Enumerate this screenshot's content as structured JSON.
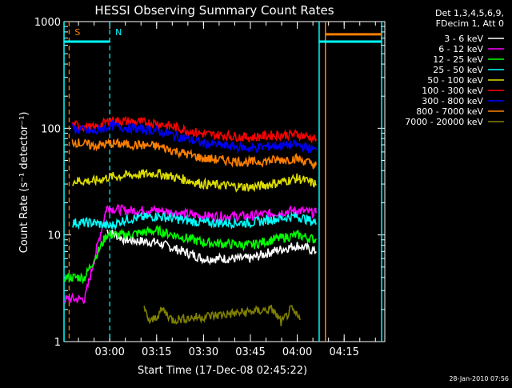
{
  "chart_data": {
    "type": "line",
    "title": "HESSI Observing Summary Count Rates",
    "xlabel": "Start Time (17-Dec-08 02:45:22)",
    "ylabel": "Count Rate (s⁻¹ detector⁻¹)",
    "y_scale": "log",
    "ylim": [
      1,
      1000
    ],
    "xlim": [
      "02:45:22",
      "04:28"
    ],
    "x_ticks": [
      "03:00",
      "03:15",
      "03:30",
      "03:45",
      "04:00",
      "04:15"
    ],
    "y_ticks": [
      "1",
      "10",
      "100",
      "1000"
    ],
    "grid": false,
    "legend_header": [
      "Det 1,3,4,5,6,9,",
      "FDecim 1, Att 0"
    ],
    "legend_position": "top-right",
    "series": [
      {
        "name": "3 - 6 keV",
        "color": "#ffffff",
        "x": [
          "02:59",
          "03:05",
          "03:15",
          "03:30",
          "03:45",
          "03:52",
          "04:00",
          "04:06"
        ],
        "values": [
          11,
          9,
          8.5,
          6,
          6,
          7,
          8,
          7
        ]
      },
      {
        "name": "6 - 12 keV",
        "color": "#ff00ff",
        "x": [
          "02:45:30",
          "02:52",
          "02:59",
          "03:05",
          "03:15",
          "03:30",
          "03:45",
          "03:52",
          "04:00",
          "04:06"
        ],
        "values": [
          2.5,
          2.5,
          18,
          17,
          17,
          15,
          15,
          16,
          17,
          16
        ]
      },
      {
        "name": "12 - 25 keV",
        "color": "#00ff00",
        "x": [
          "02:45:30",
          "02:52",
          "02:59",
          "03:05",
          "03:15",
          "03:30",
          "03:45",
          "03:52",
          "04:00",
          "04:06"
        ],
        "values": [
          4,
          4,
          10,
          10,
          11,
          8.5,
          8,
          9,
          10,
          9
        ]
      },
      {
        "name": "25 - 50 keV",
        "color": "#00ffff",
        "x": [
          "02:48",
          "02:55",
          "03:00",
          "03:05",
          "03:15",
          "03:30",
          "03:45",
          "03:52",
          "04:00",
          "04:06"
        ],
        "values": [
          13,
          13,
          12,
          14,
          15,
          13,
          13,
          14,
          15,
          13
        ]
      },
      {
        "name": "50 - 100 keV",
        "color": "#dddd00",
        "x": [
          "02:48",
          "02:55",
          "03:00",
          "03:15",
          "03:30",
          "03:45",
          "03:52",
          "04:00",
          "04:06"
        ],
        "values": [
          32,
          32,
          35,
          38,
          30,
          28,
          30,
          34,
          30
        ]
      },
      {
        "name": "100 - 300 keV",
        "color": "#ff0000",
        "x": [
          "02:48",
          "02:55",
          "03:00",
          "03:15",
          "03:30",
          "03:45",
          "03:52",
          "04:00",
          "04:06"
        ],
        "values": [
          108,
          100,
          118,
          112,
          88,
          82,
          86,
          88,
          80
        ]
      },
      {
        "name": "300 - 800 keV",
        "color": "#0000ff",
        "x": [
          "02:48",
          "02:55",
          "03:00",
          "03:15",
          "03:30",
          "03:45",
          "03:52",
          "04:00",
          "04:06"
        ],
        "values": [
          100,
          92,
          105,
          95,
          72,
          65,
          68,
          70,
          62
        ]
      },
      {
        "name": "800 - 7000 keV",
        "color": "#ff8000",
        "x": [
          "02:48",
          "02:55",
          "03:00",
          "03:15",
          "03:30",
          "03:45",
          "03:52",
          "04:00",
          "04:06"
        ],
        "values": [
          75,
          68,
          72,
          68,
          52,
          48,
          50,
          52,
          45
        ]
      },
      {
        "name": "7000 - 20000 keV",
        "color": "#808000",
        "x": [
          "03:11",
          "03:13",
          "03:17",
          "03:20",
          "03:52",
          "03:55",
          "03:58",
          "04:01"
        ],
        "values": [
          2,
          1.5,
          2,
          1.6,
          2,
          1.5,
          2,
          1.6
        ]
      }
    ],
    "markers": [
      {
        "label": "S",
        "color": "#ff8000",
        "x": "02:47"
      },
      {
        "label": "N",
        "color": "#00ffff",
        "x": "03:00"
      }
    ],
    "level_lines": [
      {
        "color": "#00ffff",
        "x": [
          "02:45:22",
          "03:00"
        ],
        "value": 650
      },
      {
        "color": "#00ffff",
        "x": [
          "04:07",
          "04:27"
        ],
        "value": 650
      },
      {
        "color": "#ff8000",
        "x": [
          "04:09",
          "04:27"
        ],
        "value": 760
      }
    ],
    "footer_timestamp": "28-Jan-2010 07:56"
  }
}
